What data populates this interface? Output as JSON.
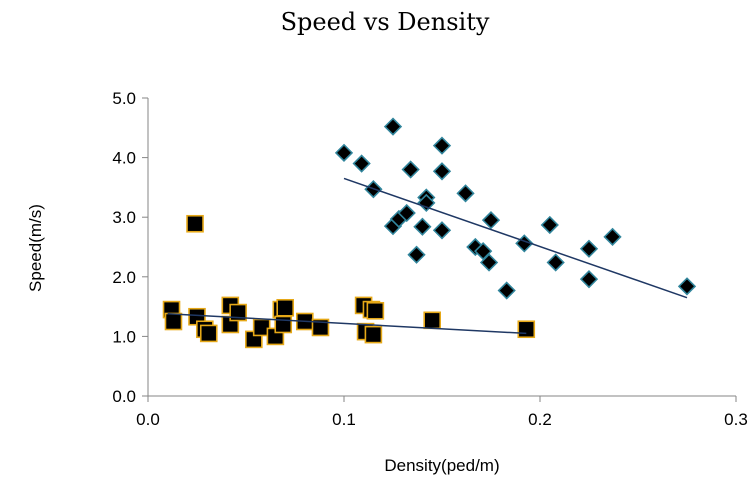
{
  "chart_data": {
    "type": "scatter",
    "title": "Speed vs Density",
    "xlabel": "Density(ped/m)",
    "ylabel": "Speed(m/s)",
    "xlim": [
      0.0,
      0.3
    ],
    "ylim": [
      0.0,
      5.0
    ],
    "x_ticks": [
      "0.0",
      "0.1",
      "0.2",
      "0.3"
    ],
    "y_ticks": [
      "0.0",
      "1.0",
      "2.0",
      "3.0",
      "4.0",
      "5.0"
    ],
    "grid": false,
    "legend": "none",
    "series": [
      {
        "marker": "diamond",
        "fill_color": "#000000",
        "edge_color": "#31859c",
        "points": [
          [
            0.1,
            4.08
          ],
          [
            0.109,
            3.9
          ],
          [
            0.115,
            3.47
          ],
          [
            0.125,
            4.52
          ],
          [
            0.125,
            2.85
          ],
          [
            0.128,
            2.97
          ],
          [
            0.132,
            3.07
          ],
          [
            0.134,
            3.8
          ],
          [
            0.137,
            2.37
          ],
          [
            0.14,
            2.84
          ],
          [
            0.142,
            3.33
          ],
          [
            0.142,
            3.24
          ],
          [
            0.15,
            4.2
          ],
          [
            0.15,
            3.77
          ],
          [
            0.15,
            2.78
          ],
          [
            0.162,
            3.4
          ],
          [
            0.167,
            2.5
          ],
          [
            0.171,
            2.43
          ],
          [
            0.174,
            2.24
          ],
          [
            0.175,
            2.95
          ],
          [
            0.183,
            1.77
          ],
          [
            0.192,
            2.56
          ],
          [
            0.205,
            2.87
          ],
          [
            0.208,
            2.24
          ],
          [
            0.225,
            2.47
          ],
          [
            0.225,
            1.96
          ],
          [
            0.237,
            2.67
          ],
          [
            0.275,
            1.84
          ]
        ],
        "trendline": {
          "x": [
            0.1,
            0.275
          ],
          "y": [
            3.65,
            1.65
          ],
          "color": "#1f3864"
        }
      },
      {
        "marker": "square",
        "fill_color": "#000000",
        "edge_color": "#e6a817",
        "points": [
          [
            0.012,
            1.45
          ],
          [
            0.013,
            1.25
          ],
          [
            0.024,
            2.89
          ],
          [
            0.025,
            1.33
          ],
          [
            0.029,
            1.12
          ],
          [
            0.031,
            1.05
          ],
          [
            0.042,
            1.52
          ],
          [
            0.042,
            1.2
          ],
          [
            0.046,
            1.4
          ],
          [
            0.054,
            0.95
          ],
          [
            0.058,
            1.15
          ],
          [
            0.065,
            1.0
          ],
          [
            0.068,
            1.45
          ],
          [
            0.069,
            1.2
          ],
          [
            0.07,
            1.48
          ],
          [
            0.08,
            1.25
          ],
          [
            0.088,
            1.15
          ],
          [
            0.11,
            1.52
          ],
          [
            0.111,
            1.08
          ],
          [
            0.114,
            1.45
          ],
          [
            0.115,
            1.03
          ],
          [
            0.116,
            1.43
          ],
          [
            0.145,
            1.27
          ],
          [
            0.193,
            1.12
          ]
        ],
        "trendline": {
          "x": [
            0.01,
            0.193
          ],
          "y": [
            1.38,
            1.05
          ],
          "color": "#1f3864"
        }
      }
    ]
  }
}
